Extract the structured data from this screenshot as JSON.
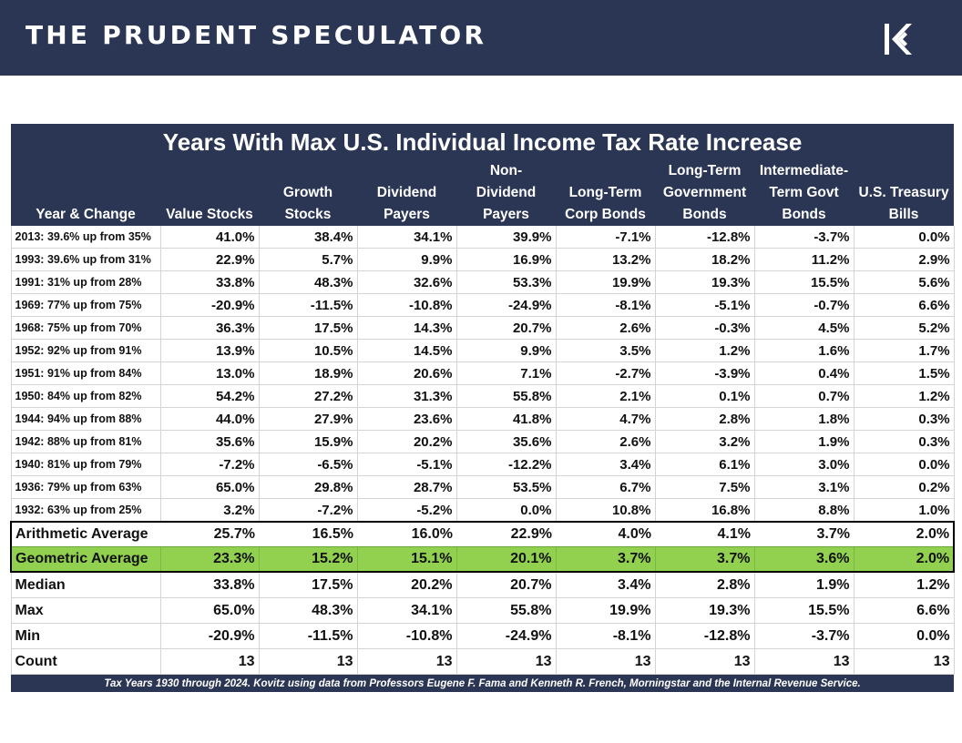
{
  "header": {
    "brand": "THE PRUDENT SPECULATOR",
    "logo_icon": "k-arrow-logo-icon"
  },
  "table": {
    "title": "Years With Max U.S. Individual Income Tax Rate Increase",
    "columns": [
      [
        "Year & Change"
      ],
      [
        "Value Stocks"
      ],
      [
        "Growth",
        "Stocks"
      ],
      [
        "Dividend",
        "Payers"
      ],
      [
        "Non-",
        "Dividend",
        "Payers"
      ],
      [
        "Long-Term",
        "Corp Bonds"
      ],
      [
        "Long-Term",
        "Government",
        "Bonds"
      ],
      [
        "Intermediate-",
        "Term Govt",
        "Bonds"
      ],
      [
        "U.S. Treasury",
        "Bills"
      ]
    ],
    "rows": [
      [
        "2013: 39.6% up from 35%",
        "41.0%",
        "38.4%",
        "34.1%",
        "39.9%",
        "-7.1%",
        "-12.8%",
        "-3.7%",
        "0.0%"
      ],
      [
        "1993: 39.6% up from 31%",
        "22.9%",
        "5.7%",
        "9.9%",
        "16.9%",
        "13.2%",
        "18.2%",
        "11.2%",
        "2.9%"
      ],
      [
        "1991: 31% up from 28%",
        "33.8%",
        "48.3%",
        "32.6%",
        "53.3%",
        "19.9%",
        "19.3%",
        "15.5%",
        "5.6%"
      ],
      [
        "1969: 77% up from 75%",
        "-20.9%",
        "-11.5%",
        "-10.8%",
        "-24.9%",
        "-8.1%",
        "-5.1%",
        "-0.7%",
        "6.6%"
      ],
      [
        "1968: 75% up from 70%",
        "36.3%",
        "17.5%",
        "14.3%",
        "20.7%",
        "2.6%",
        "-0.3%",
        "4.5%",
        "5.2%"
      ],
      [
        "1952: 92% up from 91%",
        "13.9%",
        "10.5%",
        "14.5%",
        "9.9%",
        "3.5%",
        "1.2%",
        "1.6%",
        "1.7%"
      ],
      [
        "1951: 91% up from 84%",
        "13.0%",
        "18.9%",
        "20.6%",
        "7.1%",
        "-2.7%",
        "-3.9%",
        "0.4%",
        "1.5%"
      ],
      [
        "1950: 84% up from 82%",
        "54.2%",
        "27.2%",
        "31.3%",
        "55.8%",
        "2.1%",
        "0.1%",
        "0.7%",
        "1.2%"
      ],
      [
        "1944: 94% up from 88%",
        "44.0%",
        "27.9%",
        "23.6%",
        "41.8%",
        "4.7%",
        "2.8%",
        "1.8%",
        "0.3%"
      ],
      [
        "1942: 88% up from 81%",
        "35.6%",
        "15.9%",
        "20.2%",
        "35.6%",
        "2.6%",
        "3.2%",
        "1.9%",
        "0.3%"
      ],
      [
        "1940: 81% up from 79%",
        "-7.2%",
        "-6.5%",
        "-5.1%",
        "-12.2%",
        "3.4%",
        "6.1%",
        "3.0%",
        "0.0%"
      ],
      [
        "1936: 79% up from 63%",
        "65.0%",
        "29.8%",
        "28.7%",
        "53.5%",
        "6.7%",
        "7.5%",
        "3.1%",
        "0.2%"
      ],
      [
        "1932: 63% up from 25%",
        "3.2%",
        "-7.2%",
        "-5.2%",
        "0.0%",
        "10.8%",
        "16.8%",
        "8.8%",
        "1.0%"
      ]
    ],
    "arithmetic": [
      "Arithmetic Average",
      "25.7%",
      "16.5%",
      "16.0%",
      "22.9%",
      "4.0%",
      "4.1%",
      "3.7%",
      "2.0%"
    ],
    "geometric": [
      "Geometric Average",
      "23.3%",
      "15.2%",
      "15.1%",
      "20.1%",
      "3.7%",
      "3.7%",
      "3.6%",
      "2.0%"
    ],
    "stats": [
      [
        "Median",
        "33.8%",
        "17.5%",
        "20.2%",
        "20.7%",
        "3.4%",
        "2.8%",
        "1.9%",
        "1.2%"
      ],
      [
        "Max",
        "65.0%",
        "48.3%",
        "34.1%",
        "55.8%",
        "19.9%",
        "19.3%",
        "15.5%",
        "6.6%"
      ],
      [
        "Min",
        "-20.9%",
        "-11.5%",
        "-10.8%",
        "-24.9%",
        "-8.1%",
        "-12.8%",
        "-3.7%",
        "0.0%"
      ],
      [
        "Count",
        "13",
        "13",
        "13",
        "13",
        "13",
        "13",
        "13",
        "13"
      ]
    ],
    "footnote": "Tax Years 1930 through 2024. Kovitz using data from Professors Eugene F. Fama and Kenneth R. French, Morningstar and the Internal Revenue Service."
  },
  "colors": {
    "navy": "#2b3654",
    "highlight_green": "#92d050"
  }
}
